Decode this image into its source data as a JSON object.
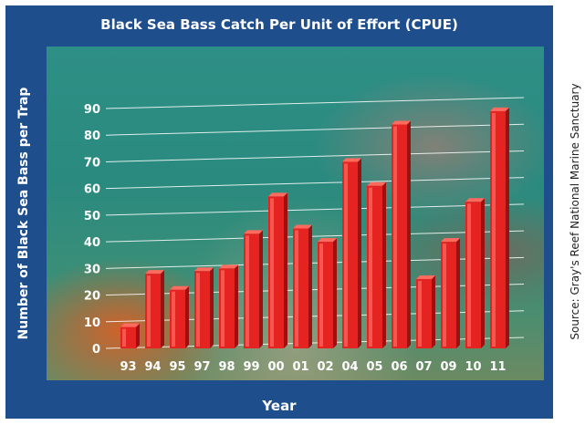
{
  "chart_data": {
    "type": "bar",
    "title": "Black Sea Bass Catch Per Unit of Effort (CPUE)",
    "xlabel": "Year",
    "ylabel": "Number of Black Sea Bass per Trap",
    "categories": [
      "93",
      "94",
      "95",
      "97",
      "98",
      "99",
      "00",
      "01",
      "02",
      "04",
      "05",
      "06",
      "07",
      "09",
      "10",
      "11"
    ],
    "values": [
      8,
      28,
      22,
      29,
      30,
      43,
      57,
      45,
      40,
      70,
      61,
      84,
      26,
      40,
      55,
      89
    ],
    "ylim": [
      0,
      90
    ],
    "yticks": [
      0,
      10,
      20,
      30,
      40,
      50,
      60,
      70,
      80,
      90
    ],
    "grid": true,
    "bar_color": "#e52421"
  },
  "credit": "Source: Gray's Reef National Marine Sanctuary"
}
